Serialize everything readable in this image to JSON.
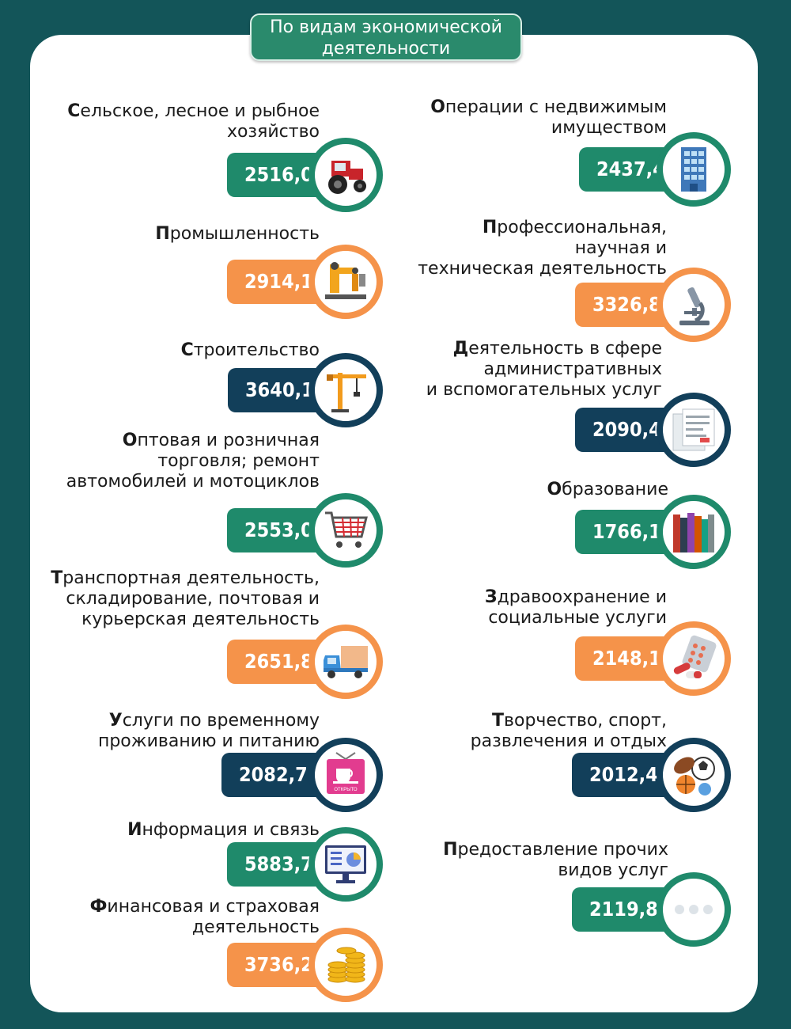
{
  "title": "По видам экономической\nдеятельности",
  "colors": {
    "green": "#1f8a6b",
    "orange": "#f5934a",
    "navy": "#123f5a",
    "background": "#135559"
  },
  "items": [
    {
      "label": "Сельское, лесное и рыбное\nхозяйство",
      "value": "2516,0",
      "color": "green",
      "icon": "tractor-icon"
    },
    {
      "label": "Промышленность",
      "value": "2914,1",
      "color": "orange",
      "icon": "robot-arm-icon"
    },
    {
      "label": "Строительство",
      "value": "3640,1",
      "color": "navy",
      "icon": "crane-icon"
    },
    {
      "label": "Оптовая и розничная\nторговля; ремонт\nавтомобилей и мотоциклов",
      "value": "2553,0",
      "color": "green",
      "icon": "shopping-cart-icon"
    },
    {
      "label": "Транспортная деятельность,\nскладирование, почтовая и\nкурьерская деятельность",
      "value": "2651,8",
      "color": "orange",
      "icon": "delivery-truck-icon"
    },
    {
      "label": "Услуги по временному\nпроживанию и питанию",
      "value": "2082,7",
      "color": "navy",
      "icon": "cafe-sign-icon",
      "sign_text": "ОТКРЫТО"
    },
    {
      "label": "Информация и связь",
      "value": "5883,7",
      "color": "green",
      "icon": "computer-monitor-icon"
    },
    {
      "label": "Финансовая  и страховая\nдеятельность",
      "value": "3736,2",
      "color": "orange",
      "icon": "coins-icon"
    },
    {
      "label": "Операции с недвижимым\nимуществом",
      "value": "2437,4",
      "color": "green",
      "icon": "building-icon"
    },
    {
      "label": "Профессиональная,\nнаучная и\nтехническая деятельность",
      "value": "3326,8",
      "color": "orange",
      "icon": "microscope-icon"
    },
    {
      "label": "Деятельность в сфере\nадминистративных\nи вспомогательных услуг",
      "value": "2090,4",
      "color": "navy",
      "icon": "documents-icon"
    },
    {
      "label": "Образование",
      "value": "1766,1",
      "color": "green",
      "icon": "books-icon"
    },
    {
      "label": "Здравоохранение и\nсоциальные услуги",
      "value": "2148,1",
      "color": "orange",
      "icon": "pills-icon"
    },
    {
      "label": "Творчество, спорт,\nразвлечения и отдых",
      "value": "2012,4",
      "color": "navy",
      "icon": "sports-balls-icon"
    },
    {
      "label": "Предоставление прочих\nвидов услуг",
      "value": "2119,8",
      "color": "green",
      "icon": "ellipsis-icon"
    }
  ]
}
